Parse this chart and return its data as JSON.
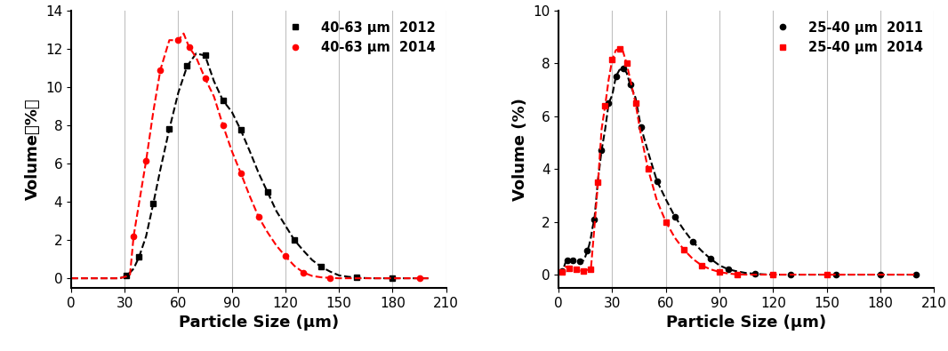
{
  "left": {
    "xlabel": "Particle Size (μm)",
    "ylabel": "Volume（%）",
    "ylim": [
      -0.5,
      14
    ],
    "xlim": [
      0,
      210
    ],
    "yticks": [
      0,
      2,
      4,
      6,
      8,
      10,
      12,
      14
    ],
    "xticks": [
      0,
      30,
      60,
      90,
      120,
      150,
      180,
      210
    ],
    "series": [
      {
        "label": "40-63 μm  2012",
        "color": "black",
        "marker": "s",
        "x": [
          0,
          5,
          10,
          15,
          20,
          25,
          27,
          29,
          31,
          33,
          35,
          38,
          42,
          46,
          50,
          55,
          60,
          65,
          70,
          75,
          80,
          85,
          90,
          95,
          100,
          105,
          110,
          115,
          120,
          125,
          130,
          135,
          140,
          145,
          150,
          155,
          160,
          165,
          170,
          175,
          180,
          190,
          200
        ],
        "y": [
          0,
          0,
          0,
          0,
          0,
          0,
          0,
          0.05,
          0.15,
          0.3,
          0.5,
          1.1,
          2.2,
          3.9,
          5.7,
          7.8,
          9.7,
          11.1,
          11.75,
          11.65,
          10.3,
          9.3,
          8.7,
          7.75,
          6.65,
          5.5,
          4.5,
          3.5,
          2.75,
          2.0,
          1.45,
          0.95,
          0.6,
          0.35,
          0.15,
          0.08,
          0.03,
          0.01,
          0.0,
          0.0,
          0.0,
          0.0,
          0.0
        ],
        "mx": [
          31,
          38,
          46,
          55,
          65,
          75,
          85,
          95,
          110,
          125,
          140,
          160,
          180
        ],
        "my": [
          0.15,
          1.1,
          3.9,
          7.8,
          11.1,
          11.65,
          9.3,
          7.75,
          4.5,
          2.0,
          0.6,
          0.03,
          0.0
        ]
      },
      {
        "label": "40-63 μm  2014",
        "color": "red",
        "marker": "o",
        "x": [
          0,
          5,
          10,
          15,
          20,
          25,
          27,
          29,
          31,
          33,
          35,
          38,
          42,
          46,
          50,
          55,
          60,
          63,
          66,
          70,
          75,
          80,
          85,
          90,
          95,
          100,
          105,
          110,
          115,
          120,
          125,
          130,
          135,
          140,
          145,
          150,
          155,
          160,
          165,
          170,
          175,
          180,
          190,
          200
        ],
        "y": [
          0,
          0,
          0,
          0,
          0,
          0,
          0,
          0.05,
          0.1,
          0.2,
          2.2,
          3.9,
          6.15,
          8.7,
          10.9,
          12.45,
          12.45,
          12.8,
          12.1,
          11.55,
          10.45,
          9.5,
          8.0,
          6.65,
          5.5,
          4.3,
          3.2,
          2.4,
          1.7,
          1.15,
          0.65,
          0.3,
          0.12,
          0.05,
          0.02,
          0.0,
          0.0,
          0.0,
          0.0,
          0.0,
          0.0,
          0.0,
          0.0,
          0.0
        ],
        "mx": [
          35,
          42,
          50,
          60,
          66,
          75,
          85,
          95,
          105,
          120,
          130,
          145,
          195
        ],
        "my": [
          2.2,
          6.15,
          10.9,
          12.45,
          12.1,
          10.45,
          8.0,
          5.5,
          3.2,
          1.15,
          0.3,
          0.02,
          0.0
        ]
      }
    ]
  },
  "right": {
    "xlabel": "Particle Size (μm)",
    "ylabel": "Volume (%)",
    "ylim": [
      -0.5,
      10
    ],
    "xlim": [
      0,
      210
    ],
    "yticks": [
      0,
      2,
      4,
      6,
      8,
      10
    ],
    "xticks": [
      0,
      30,
      60,
      90,
      120,
      150,
      180,
      210
    ],
    "series": [
      {
        "label": "25-40 μm  2011",
        "color": "black",
        "marker": "o",
        "x": [
          0,
          1,
          2,
          3,
          4,
          5,
          6,
          7,
          8,
          9,
          10,
          11,
          12,
          13,
          14,
          15,
          16,
          17,
          18,
          19,
          20,
          22,
          24,
          26,
          28,
          30,
          32,
          34,
          36,
          38,
          40,
          43,
          46,
          50,
          55,
          60,
          65,
          70,
          75,
          80,
          85,
          90,
          95,
          100,
          105,
          110,
          115,
          120,
          130,
          140,
          150,
          160,
          170,
          180,
          190,
          200
        ],
        "y": [
          0,
          0.05,
          0.15,
          0.3,
          0.5,
          0.55,
          0.55,
          0.5,
          0.55,
          0.6,
          0.6,
          0.55,
          0.5,
          0.5,
          0.55,
          0.7,
          0.9,
          1.1,
          1.4,
          1.8,
          2.1,
          3.6,
          4.7,
          5.5,
          6.5,
          6.8,
          7.5,
          7.75,
          7.8,
          7.65,
          7.2,
          6.7,
          5.6,
          4.65,
          3.55,
          2.85,
          2.2,
          1.7,
          1.25,
          0.9,
          0.6,
          0.35,
          0.2,
          0.12,
          0.06,
          0.03,
          0.01,
          0.0,
          0.0,
          0.0,
          0.0,
          0.0,
          0.0,
          0.0,
          0.0,
          0.0
        ],
        "mx": [
          2,
          5,
          8,
          12,
          16,
          20,
          24,
          28,
          32,
          36,
          40,
          46,
          55,
          65,
          75,
          85,
          95,
          110,
          130,
          155,
          180,
          200
        ],
        "my": [
          0.15,
          0.55,
          0.55,
          0.5,
          0.9,
          2.1,
          4.7,
          6.5,
          7.5,
          7.8,
          7.2,
          5.6,
          3.55,
          2.2,
          1.25,
          0.6,
          0.2,
          0.03,
          0.0,
          0.0,
          0.0,
          0.0
        ]
      },
      {
        "label": "25-40 μm  2014",
        "color": "red",
        "marker": "s",
        "x": [
          0,
          1,
          2,
          3,
          4,
          5,
          6,
          7,
          8,
          9,
          10,
          12,
          14,
          16,
          18,
          20,
          22,
          24,
          26,
          28,
          30,
          32,
          34,
          36,
          38,
          40,
          43,
          46,
          50,
          55,
          60,
          65,
          70,
          75,
          80,
          85,
          90,
          95,
          100,
          105,
          110,
          115,
          120,
          130,
          140,
          150,
          160,
          170,
          180,
          190,
          200
        ],
        "y": [
          0,
          0.05,
          0.1,
          0.2,
          0.3,
          0.3,
          0.25,
          0.2,
          0.2,
          0.2,
          0.2,
          0.15,
          0.15,
          0.18,
          0.2,
          1.8,
          3.5,
          5.5,
          6.4,
          7.4,
          8.15,
          8.5,
          8.55,
          8.45,
          8.0,
          7.4,
          6.5,
          5.3,
          4.0,
          2.8,
          2.0,
          1.4,
          0.95,
          0.6,
          0.35,
          0.2,
          0.1,
          0.04,
          0.01,
          0.0,
          0.0,
          0.0,
          0.0,
          0.0,
          0.0,
          0.0,
          0.0,
          0.0,
          0.0,
          0.0,
          0.0
        ],
        "mx": [
          2,
          6,
          10,
          14,
          18,
          22,
          26,
          30,
          34,
          38,
          43,
          50,
          60,
          70,
          80,
          90,
          100,
          120,
          150
        ],
        "my": [
          0.1,
          0.25,
          0.2,
          0.15,
          0.2,
          3.5,
          6.4,
          8.15,
          8.55,
          8.0,
          6.5,
          4.0,
          2.0,
          0.95,
          0.35,
          0.1,
          0.01,
          0.0,
          0.0
        ]
      }
    ]
  }
}
